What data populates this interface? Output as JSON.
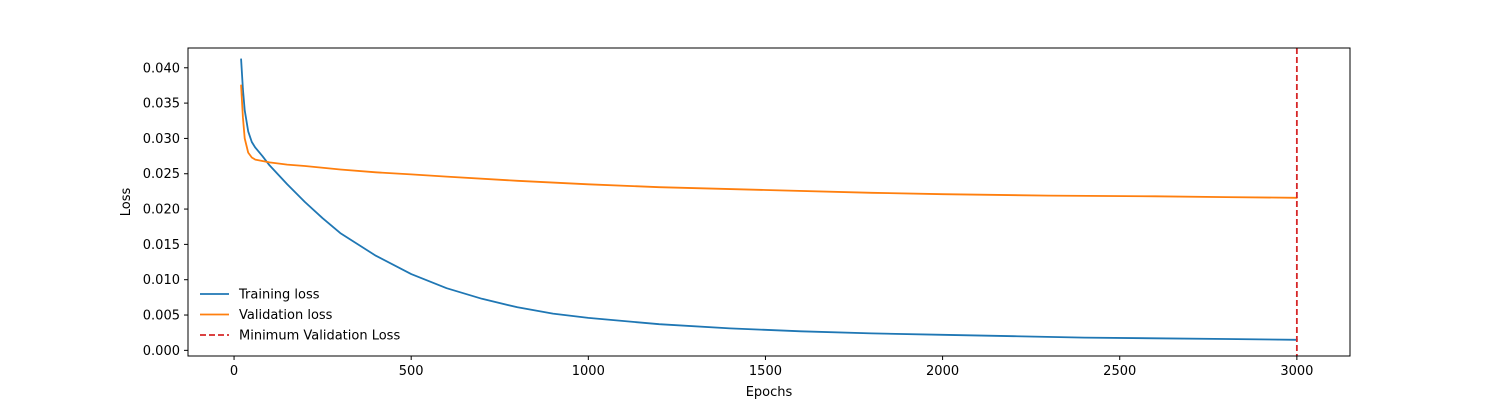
{
  "chart_data": {
    "type": "line",
    "xlabel": "Epochs",
    "ylabel": "Loss",
    "xlim": [
      -130,
      3150
    ],
    "ylim": [
      -0.0008,
      0.0428
    ],
    "xticks": [
      0,
      500,
      1000,
      1500,
      2000,
      2500,
      3000
    ],
    "yticks": [
      0.0,
      0.005,
      0.01,
      0.015,
      0.02,
      0.025,
      0.03,
      0.035,
      0.04
    ],
    "ytick_labels": [
      "0.000",
      "0.005",
      "0.010",
      "0.015",
      "0.020",
      "0.025",
      "0.030",
      "0.035",
      "0.040"
    ],
    "grid": false,
    "legend_position": "lower-left",
    "series": [
      {
        "name": "Training loss",
        "color": "#1f77b4",
        "style": "solid",
        "x": [
          20,
          25,
          30,
          40,
          50,
          60,
          80,
          100,
          150,
          200,
          250,
          300,
          400,
          500,
          600,
          700,
          800,
          900,
          1000,
          1200,
          1400,
          1600,
          1800,
          2000,
          2200,
          2400,
          2600,
          2800,
          3000
        ],
        "y": [
          0.0412,
          0.037,
          0.034,
          0.031,
          0.0295,
          0.0287,
          0.0275,
          0.0262,
          0.0235,
          0.021,
          0.0187,
          0.0166,
          0.0134,
          0.0108,
          0.0088,
          0.0073,
          0.0061,
          0.0052,
          0.0046,
          0.0037,
          0.0031,
          0.0027,
          0.0024,
          0.0022,
          0.002,
          0.0018,
          0.0017,
          0.0016,
          0.0015
        ]
      },
      {
        "name": "Validation loss",
        "color": "#ff7f0e",
        "style": "solid",
        "x": [
          20,
          25,
          30,
          40,
          50,
          60,
          80,
          100,
          150,
          200,
          300,
          400,
          500,
          600,
          800,
          1000,
          1200,
          1500,
          1800,
          2000,
          2300,
          2600,
          2800,
          3000
        ],
        "y": [
          0.0375,
          0.033,
          0.03,
          0.028,
          0.0273,
          0.027,
          0.0268,
          0.0266,
          0.0263,
          0.0261,
          0.0256,
          0.0252,
          0.0249,
          0.0246,
          0.024,
          0.0235,
          0.0231,
          0.0227,
          0.0223,
          0.0221,
          0.0219,
          0.0218,
          0.0217,
          0.0216
        ]
      }
    ],
    "vlines": [
      {
        "name": "Minimum Validation Loss",
        "x": 3000,
        "color": "#d62728",
        "style": "dashed"
      }
    ]
  }
}
